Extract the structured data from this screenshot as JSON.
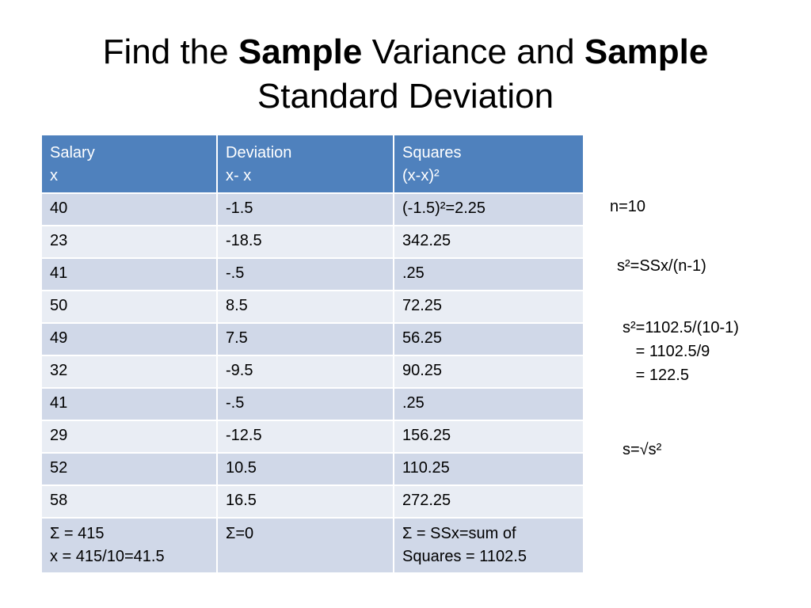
{
  "title": {
    "part1": "Find the ",
    "bold1": "Sample",
    "part2": " Variance and ",
    "bold2": "Sample",
    "part3": "Standard Deviation"
  },
  "table": {
    "headers": [
      {
        "line1": "Salary",
        "line2": "x"
      },
      {
        "line1": "Deviation",
        "line2": "x- x"
      },
      {
        "line1": "Squares",
        "line2": "(x-x)²"
      }
    ],
    "rows": [
      [
        "40",
        "-1.5",
        "(-1.5)²=2.25"
      ],
      [
        "23",
        "-18.5",
        "342.25"
      ],
      [
        "41",
        "-.5",
        ".25"
      ],
      [
        "50",
        "8.5",
        "72.25"
      ],
      [
        "49",
        "7.5",
        "56.25"
      ],
      [
        "32",
        "-9.5",
        "90.25"
      ],
      [
        "41",
        "-.5",
        ".25"
      ],
      [
        "29",
        "-12.5",
        "156.25"
      ],
      [
        "52",
        "10.5",
        "110.25"
      ],
      [
        "58",
        "16.5",
        "272.25"
      ]
    ],
    "totals": [
      {
        "line1": "Σ = 415",
        "line2": "x = 415/10=41.5"
      },
      {
        "line1": "Σ=0",
        "line2": ""
      },
      {
        "line1": "Σ = SSx=sum of",
        "line2": "Squares = 1102.5"
      }
    ]
  },
  "notes": {
    "n": "n=10",
    "formula": "s²=SSx/(n-1)",
    "calc1": "s²=1102.5/(10-1)",
    "calc2": "   = 1102.5/9",
    "calc3": "   = 122.5",
    "sd": "s=√s²"
  }
}
